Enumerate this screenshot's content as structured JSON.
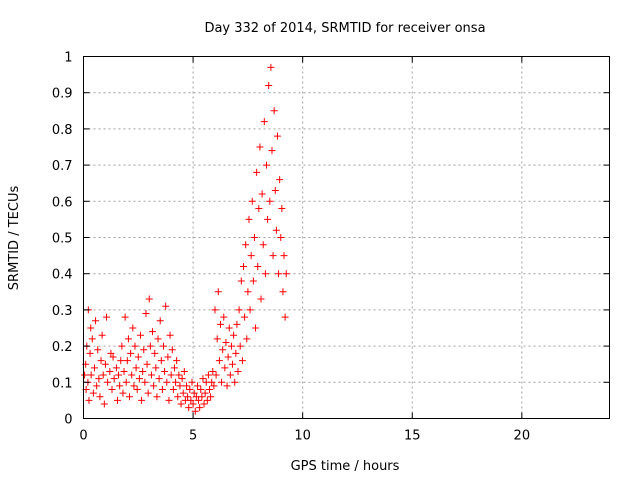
{
  "chart_data": {
    "type": "scatter",
    "title": "Day 332 of 2014, SRMTID for receiver onsa",
    "xlabel": "GPS time / hours",
    "ylabel": "SRMTID / TECUs",
    "xlim": [
      0,
      24
    ],
    "ylim": [
      0,
      1
    ],
    "x_ticks": [
      0,
      5,
      10,
      15,
      20
    ],
    "y_ticks": [
      0,
      0.1,
      0.2,
      0.3,
      0.4,
      0.5,
      0.6,
      0.7,
      0.8,
      0.9,
      1
    ],
    "x_tick_labels": [
      "0",
      "5",
      "10",
      "15",
      "20"
    ],
    "y_tick_labels": [
      "0",
      "0.1",
      "0.2",
      "0.3",
      "0.4",
      "0.5",
      "0.6",
      "0.7",
      "0.8",
      "0.9",
      "1"
    ],
    "grid": true,
    "marker": "+",
    "color": "#ff0000",
    "series": [
      {
        "name": "SRMTID",
        "points": [
          [
            0.05,
            0.12
          ],
          [
            0.1,
            0.15
          ],
          [
            0.12,
            0.08
          ],
          [
            0.15,
            0.2
          ],
          [
            0.2,
            0.1
          ],
          [
            0.22,
            0.3
          ],
          [
            0.25,
            0.05
          ],
          [
            0.3,
            0.18
          ],
          [
            0.33,
            0.25
          ],
          [
            0.35,
            0.12
          ],
          [
            0.4,
            0.22
          ],
          [
            0.45,
            0.07
          ],
          [
            0.5,
            0.14
          ],
          [
            0.55,
            0.27
          ],
          [
            0.6,
            0.09
          ],
          [
            0.65,
            0.19
          ],
          [
            0.7,
            0.11
          ],
          [
            0.75,
            0.06
          ],
          [
            0.8,
            0.16
          ],
          [
            0.85,
            0.23
          ],
          [
            0.9,
            0.12
          ],
          [
            0.95,
            0.04
          ],
          [
            1.0,
            0.15
          ],
          [
            1.05,
            0.28
          ],
          [
            1.1,
            0.1
          ],
          [
            1.2,
            0.13
          ],
          [
            1.25,
            0.18
          ],
          [
            1.3,
            0.08
          ],
          [
            1.35,
            0.17
          ],
          [
            1.4,
            0.11
          ],
          [
            1.5,
            0.14
          ],
          [
            1.55,
            0.05
          ],
          [
            1.6,
            0.12
          ],
          [
            1.65,
            0.09
          ],
          [
            1.7,
            0.16
          ],
          [
            1.75,
            0.2
          ],
          [
            1.8,
            0.07
          ],
          [
            1.85,
            0.13
          ],
          [
            1.9,
            0.28
          ],
          [
            1.95,
            0.1
          ],
          [
            2.0,
            0.16
          ],
          [
            2.05,
            0.22
          ],
          [
            2.1,
            0.06
          ],
          [
            2.15,
            0.18
          ],
          [
            2.2,
            0.12
          ],
          [
            2.25,
            0.25
          ],
          [
            2.3,
            0.09
          ],
          [
            2.35,
            0.2
          ],
          [
            2.4,
            0.14
          ],
          [
            2.45,
            0.08
          ],
          [
            2.5,
            0.17
          ],
          [
            2.55,
            0.11
          ],
          [
            2.6,
            0.23
          ],
          [
            2.65,
            0.05
          ],
          [
            2.7,
            0.13
          ],
          [
            2.75,
            0.19
          ],
          [
            2.8,
            0.1
          ],
          [
            2.85,
            0.29
          ],
          [
            2.9,
            0.15
          ],
          [
            2.95,
            0.07
          ],
          [
            3.0,
            0.33
          ],
          [
            3.05,
            0.2
          ],
          [
            3.1,
            0.12
          ],
          [
            3.15,
            0.24
          ],
          [
            3.2,
            0.09
          ],
          [
            3.25,
            0.18
          ],
          [
            3.3,
            0.14
          ],
          [
            3.35,
            0.06
          ],
          [
            3.4,
            0.22
          ],
          [
            3.45,
            0.11
          ],
          [
            3.5,
            0.27
          ],
          [
            3.55,
            0.16
          ],
          [
            3.6,
            0.08
          ],
          [
            3.65,
            0.2
          ],
          [
            3.7,
            0.13
          ],
          [
            3.75,
            0.31
          ],
          [
            3.8,
            0.1
          ],
          [
            3.85,
            0.17
          ],
          [
            3.9,
            0.05
          ],
          [
            3.95,
            0.23
          ],
          [
            4.0,
            0.12
          ],
          [
            4.05,
            0.19
          ],
          [
            4.1,
            0.08
          ],
          [
            4.15,
            0.14
          ],
          [
            4.2,
            0.1
          ],
          [
            4.25,
            0.16
          ],
          [
            4.3,
            0.06
          ],
          [
            4.35,
            0.12
          ],
          [
            4.4,
            0.09
          ],
          [
            4.45,
            0.04
          ],
          [
            4.5,
            0.11
          ],
          [
            4.55,
            0.07
          ],
          [
            4.6,
            0.13
          ],
          [
            4.65,
            0.05
          ],
          [
            4.7,
            0.09
          ],
          [
            4.75,
            0.06
          ],
          [
            4.8,
            0.03
          ],
          [
            4.85,
            0.08
          ],
          [
            4.9,
            0.05
          ],
          [
            4.95,
            0.1
          ],
          [
            5.0,
            0.04
          ],
          [
            5.05,
            0.07
          ],
          [
            5.1,
            0.02
          ],
          [
            5.15,
            0.06
          ],
          [
            5.2,
            0.09
          ],
          [
            5.25,
            0.05
          ],
          [
            5.3,
            0.03
          ],
          [
            5.35,
            0.08
          ],
          [
            5.4,
            0.06
          ],
          [
            5.45,
            0.11
          ],
          [
            5.5,
            0.04
          ],
          [
            5.55,
            0.07
          ],
          [
            5.6,
            0.1
          ],
          [
            5.65,
            0.05
          ],
          [
            5.7,
            0.12
          ],
          [
            5.75,
            0.08
          ],
          [
            5.8,
            0.06
          ],
          [
            5.85,
            0.1
          ],
          [
            5.9,
            0.13
          ],
          [
            5.95,
            0.09
          ],
          [
            6.0,
            0.3
          ],
          [
            6.05,
            0.12
          ],
          [
            6.1,
            0.22
          ],
          [
            6.15,
            0.35
          ],
          [
            6.2,
            0.16
          ],
          [
            6.25,
            0.26
          ],
          [
            6.3,
            0.1
          ],
          [
            6.35,
            0.19
          ],
          [
            6.4,
            0.28
          ],
          [
            6.45,
            0.14
          ],
          [
            6.5,
            0.21
          ],
          [
            6.55,
            0.09
          ],
          [
            6.6,
            0.17
          ],
          [
            6.65,
            0.25
          ],
          [
            6.7,
            0.12
          ],
          [
            6.75,
            0.2
          ],
          [
            6.8,
            0.15
          ],
          [
            6.85,
            0.23
          ],
          [
            6.9,
            0.1
          ],
          [
            6.95,
            0.18
          ],
          [
            7.0,
            0.26
          ],
          [
            7.05,
            0.13
          ],
          [
            7.1,
            0.3
          ],
          [
            7.15,
            0.2
          ],
          [
            7.2,
            0.38
          ],
          [
            7.25,
            0.16
          ],
          [
            7.3,
            0.42
          ],
          [
            7.35,
            0.28
          ],
          [
            7.4,
            0.48
          ],
          [
            7.45,
            0.22
          ],
          [
            7.5,
            0.35
          ],
          [
            7.55,
            0.55
          ],
          [
            7.6,
            0.3
          ],
          [
            7.65,
            0.45
          ],
          [
            7.7,
            0.6
          ],
          [
            7.75,
            0.38
          ],
          [
            7.8,
            0.5
          ],
          [
            7.85,
            0.25
          ],
          [
            7.9,
            0.68
          ],
          [
            7.95,
            0.42
          ],
          [
            8.0,
            0.58
          ],
          [
            8.05,
            0.75
          ],
          [
            8.1,
            0.33
          ],
          [
            8.15,
            0.62
          ],
          [
            8.2,
            0.48
          ],
          [
            8.25,
            0.82
          ],
          [
            8.3,
            0.4
          ],
          [
            8.35,
            0.7
          ],
          [
            8.4,
            0.55
          ],
          [
            8.45,
            0.92
          ],
          [
            8.5,
            0.6
          ],
          [
            8.55,
            0.97
          ],
          [
            8.6,
            0.74
          ],
          [
            8.65,
            0.45
          ],
          [
            8.7,
            0.85
          ],
          [
            8.75,
            0.63
          ],
          [
            8.8,
            0.52
          ],
          [
            8.85,
            0.78
          ],
          [
            8.9,
            0.4
          ],
          [
            8.95,
            0.66
          ],
          [
            9.0,
            0.5
          ],
          [
            9.05,
            0.58
          ],
          [
            9.1,
            0.35
          ],
          [
            9.15,
            0.45
          ],
          [
            9.2,
            0.28
          ],
          [
            9.25,
            0.4
          ]
        ]
      }
    ]
  }
}
